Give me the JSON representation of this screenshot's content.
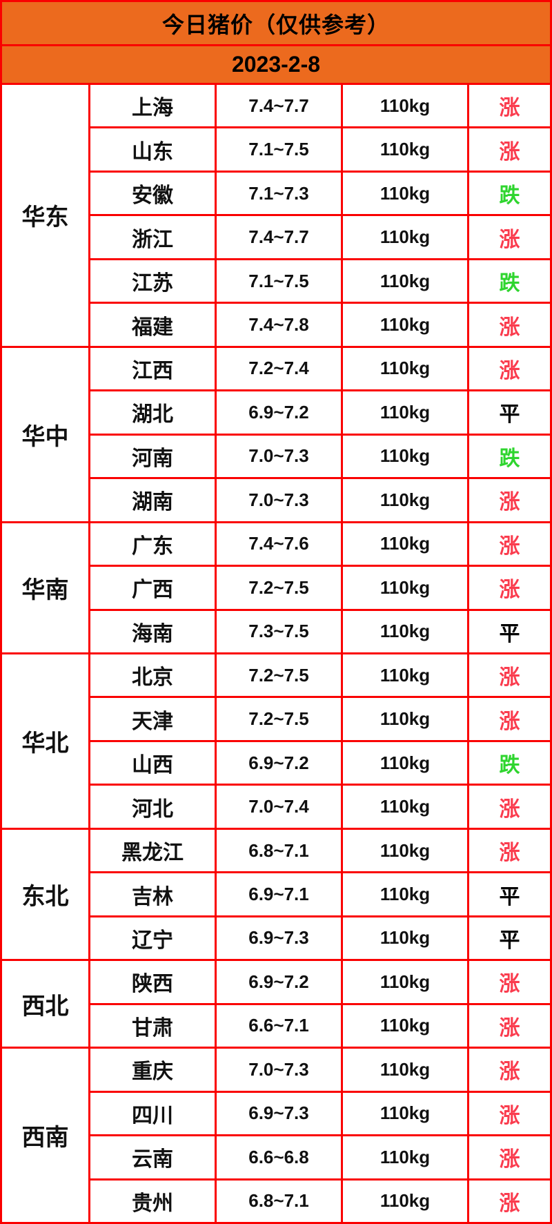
{
  "header": {
    "title": "今日猪价（仅供参考）",
    "date": "2023-2-8"
  },
  "colors": {
    "border": "#fa0000",
    "header_bg": "#ec6a1e",
    "up": "#fa3c4e",
    "down": "#2ed52e",
    "flat": "#000000"
  },
  "chart_data": {
    "type": "table",
    "title": "今日猪价（仅供参考）",
    "subtitle": "2023-2-8",
    "weight_unit": "110kg",
    "trend_legend": {
      "up": "涨",
      "down": "跌",
      "flat": "平"
    },
    "regions": [
      {
        "name": "华东",
        "rows": [
          {
            "province": "上海",
            "price": "7.4~7.7",
            "weight": "110kg",
            "trend": "涨",
            "trend_type": "up"
          },
          {
            "province": "山东",
            "price": "7.1~7.5",
            "weight": "110kg",
            "trend": "涨",
            "trend_type": "up"
          },
          {
            "province": "安徽",
            "price": "7.1~7.3",
            "weight": "110kg",
            "trend": "跌",
            "trend_type": "down"
          },
          {
            "province": "浙江",
            "price": "7.4~7.7",
            "weight": "110kg",
            "trend": "涨",
            "trend_type": "up"
          },
          {
            "province": "江苏",
            "price": "7.1~7.5",
            "weight": "110kg",
            "trend": "跌",
            "trend_type": "down"
          },
          {
            "province": "福建",
            "price": "7.4~7.8",
            "weight": "110kg",
            "trend": "涨",
            "trend_type": "up"
          }
        ]
      },
      {
        "name": "华中",
        "rows": [
          {
            "province": "江西",
            "price": "7.2~7.4",
            "weight": "110kg",
            "trend": "涨",
            "trend_type": "up"
          },
          {
            "province": "湖北",
            "price": "6.9~7.2",
            "weight": "110kg",
            "trend": "平",
            "trend_type": "flat"
          },
          {
            "province": "河南",
            "price": "7.0~7.3",
            "weight": "110kg",
            "trend": "跌",
            "trend_type": "down"
          },
          {
            "province": "湖南",
            "price": "7.0~7.3",
            "weight": "110kg",
            "trend": "涨",
            "trend_type": "up"
          }
        ]
      },
      {
        "name": "华南",
        "rows": [
          {
            "province": "广东",
            "price": "7.4~7.6",
            "weight": "110kg",
            "trend": "涨",
            "trend_type": "up"
          },
          {
            "province": "广西",
            "price": "7.2~7.5",
            "weight": "110kg",
            "trend": "涨",
            "trend_type": "up"
          },
          {
            "province": "海南",
            "price": "7.3~7.5",
            "weight": "110kg",
            "trend": "平",
            "trend_type": "flat"
          }
        ]
      },
      {
        "name": "华北",
        "rows": [
          {
            "province": "北京",
            "price": "7.2~7.5",
            "weight": "110kg",
            "trend": "涨",
            "trend_type": "up"
          },
          {
            "province": "天津",
            "price": "7.2~7.5",
            "weight": "110kg",
            "trend": "涨",
            "trend_type": "up"
          },
          {
            "province": "山西",
            "price": "6.9~7.2",
            "weight": "110kg",
            "trend": "跌",
            "trend_type": "down"
          },
          {
            "province": "河北",
            "price": "7.0~7.4",
            "weight": "110kg",
            "trend": "涨",
            "trend_type": "up"
          }
        ]
      },
      {
        "name": "东北",
        "rows": [
          {
            "province": "黑龙江",
            "price": "6.8~7.1",
            "weight": "110kg",
            "trend": "涨",
            "trend_type": "up"
          },
          {
            "province": "吉林",
            "price": "6.9~7.1",
            "weight": "110kg",
            "trend": "平",
            "trend_type": "flat"
          },
          {
            "province": "辽宁",
            "price": "6.9~7.3",
            "weight": "110kg",
            "trend": "平",
            "trend_type": "flat"
          }
        ]
      },
      {
        "name": "西北",
        "rows": [
          {
            "province": "陕西",
            "price": "6.9~7.2",
            "weight": "110kg",
            "trend": "涨",
            "trend_type": "up"
          },
          {
            "province": "甘肃",
            "price": "6.6~7.1",
            "weight": "110kg",
            "trend": "涨",
            "trend_type": "up"
          }
        ]
      },
      {
        "name": "西南",
        "rows": [
          {
            "province": "重庆",
            "price": "7.0~7.3",
            "weight": "110kg",
            "trend": "涨",
            "trend_type": "up"
          },
          {
            "province": "四川",
            "price": "6.9~7.3",
            "weight": "110kg",
            "trend": "涨",
            "trend_type": "up"
          },
          {
            "province": "云南",
            "price": "6.6~6.8",
            "weight": "110kg",
            "trend": "涨",
            "trend_type": "up"
          },
          {
            "province": "贵州",
            "price": "6.8~7.1",
            "weight": "110kg",
            "trend": "涨",
            "trend_type": "up"
          }
        ]
      }
    ]
  }
}
